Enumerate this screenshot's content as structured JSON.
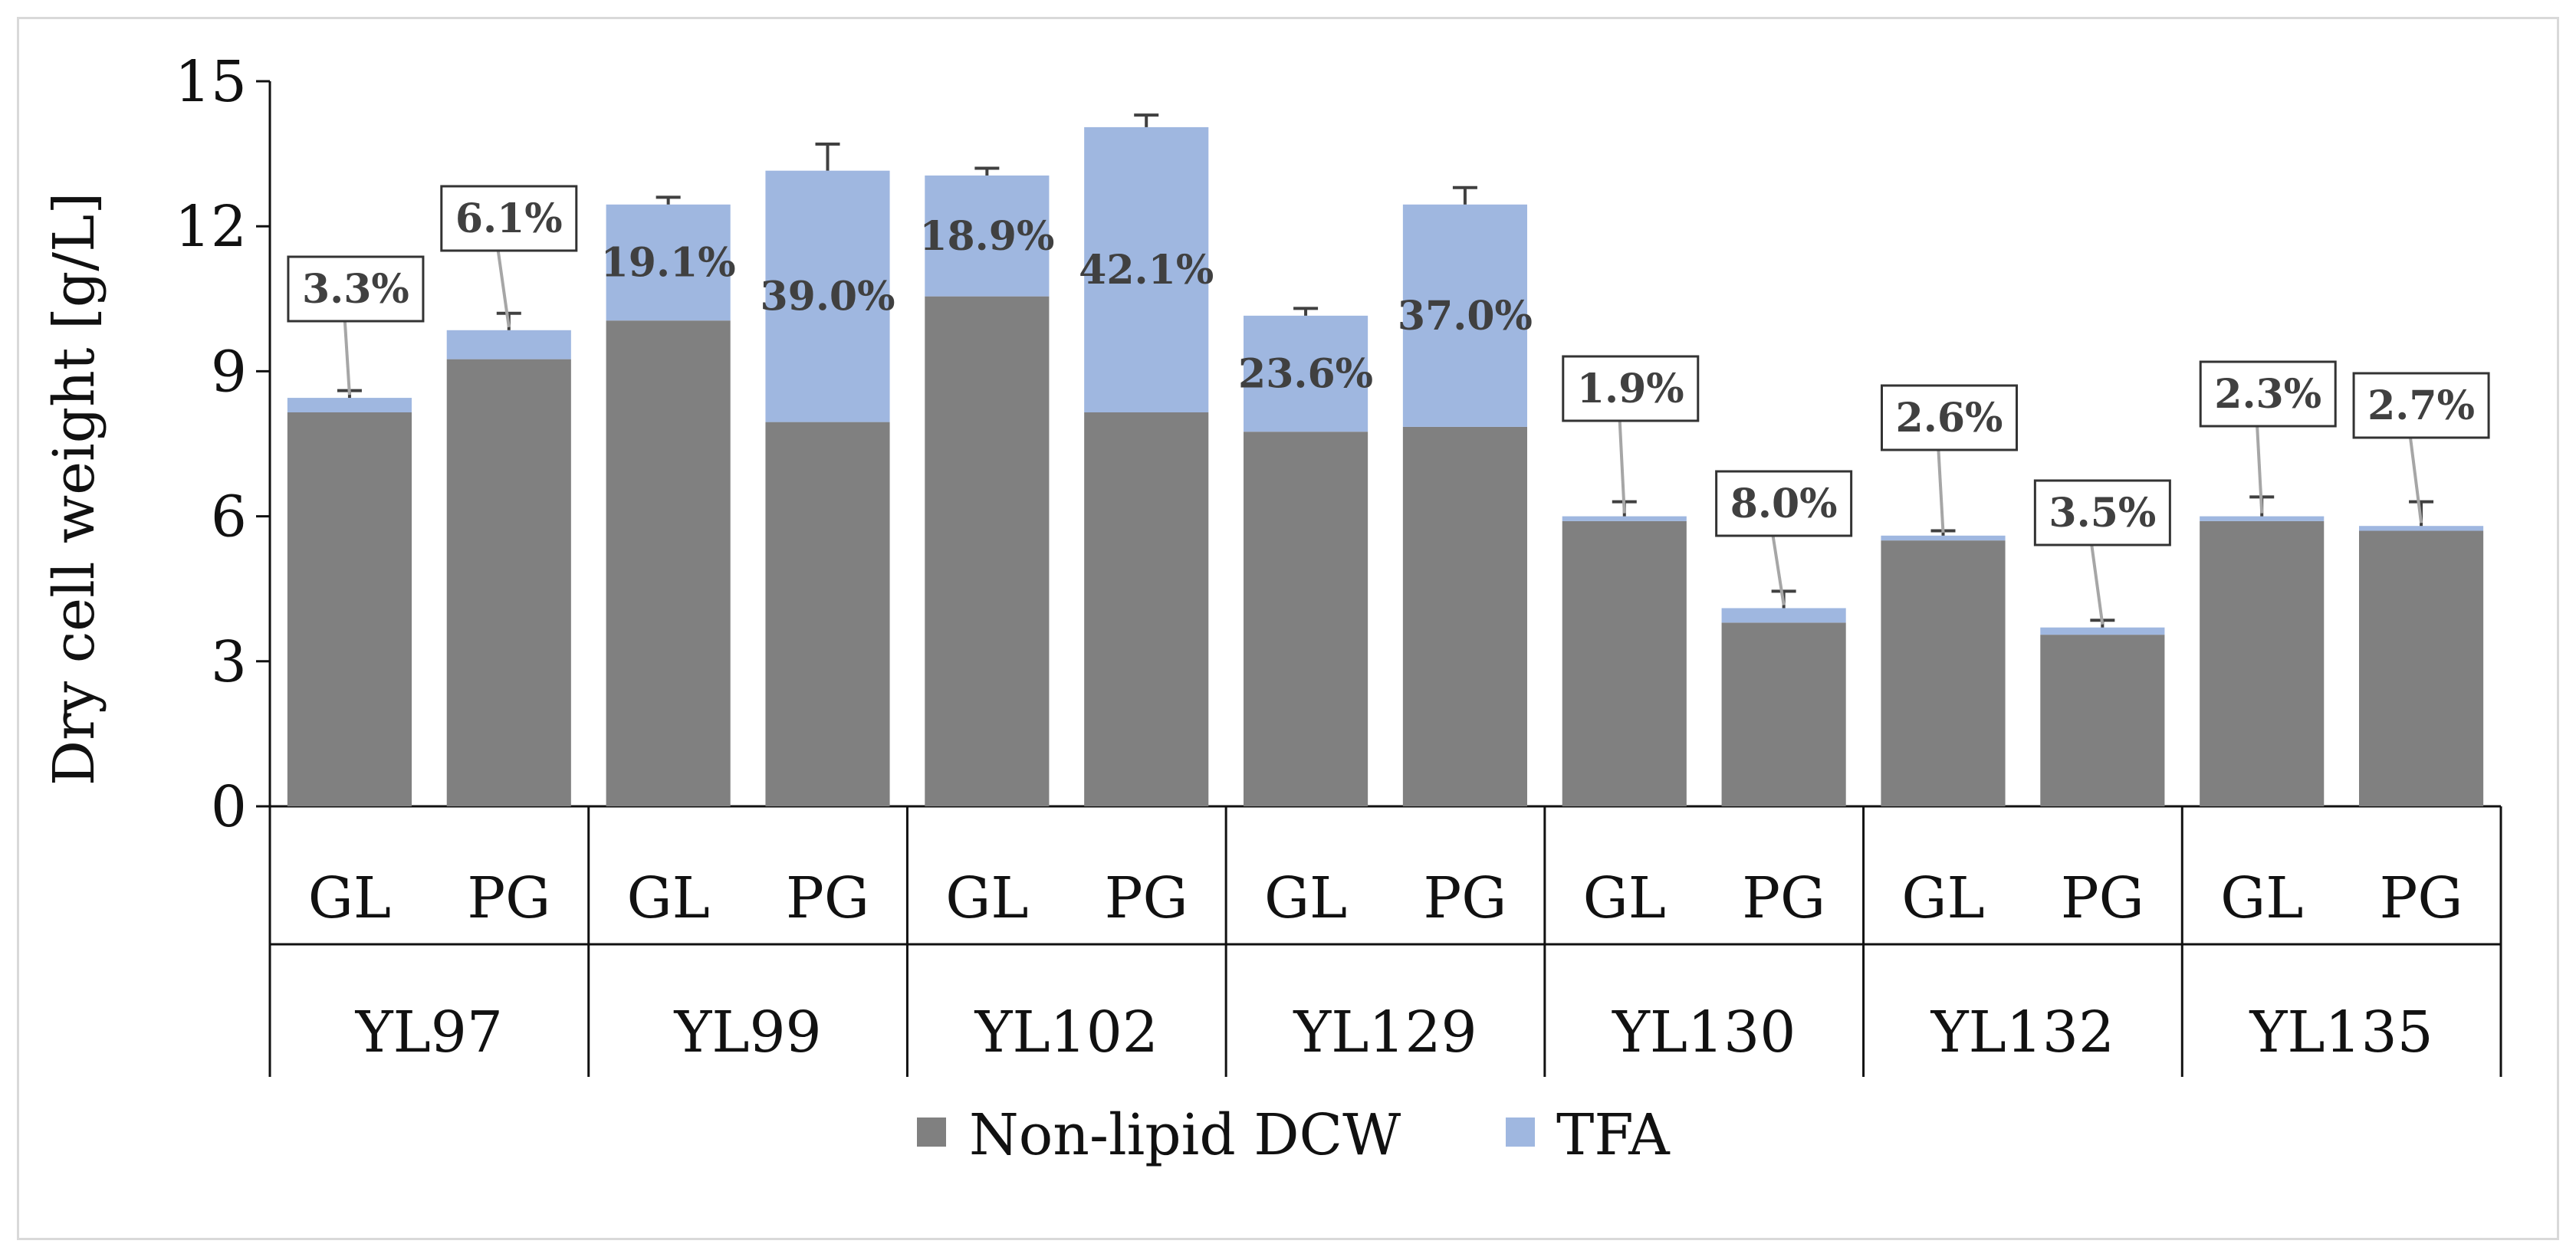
{
  "chart_data": {
    "type": "bar",
    "stacked": true,
    "ylabel": "Dry cell weight  [g/L]",
    "xlabel": "",
    "ylim": [
      0,
      15
    ],
    "yticks": [
      "0",
      "3",
      "6",
      "9",
      "12",
      "15"
    ],
    "ytick_values": [
      0,
      3,
      6,
      9,
      12,
      15
    ],
    "groups": [
      "YL97",
      "YL99",
      "YL102",
      "YL129",
      "YL130",
      "YL132",
      "YL135"
    ],
    "categories": [
      "GL",
      "PG",
      "GL",
      "PG",
      "GL",
      "PG",
      "GL",
      "PG",
      "GL",
      "PG",
      "GL",
      "PG",
      "GL",
      "PG"
    ],
    "series": [
      {
        "name": "Non-lipid DCW",
        "color": "#808080",
        "values": [
          8.15,
          9.25,
          10.05,
          7.95,
          10.55,
          8.15,
          7.75,
          7.85,
          5.9,
          3.8,
          5.5,
          3.55,
          5.9,
          5.7
        ]
      },
      {
        "name": "TFA",
        "color": "#9fb7e0",
        "values": [
          0.3,
          0.6,
          2.4,
          5.2,
          2.5,
          5.9,
          2.4,
          4.6,
          0.1,
          0.3,
          0.1,
          0.15,
          0.1,
          0.1
        ]
      }
    ],
    "error_tops": [
      8.6,
      10.2,
      12.6,
      13.7,
      13.2,
      14.3,
      10.3,
      12.8,
      6.3,
      4.45,
      5.7,
      3.85,
      6.4,
      6.3
    ],
    "tfa_percent_labels": [
      "3.3%",
      "6.1%",
      "19.1%",
      "39.0%",
      "18.9%",
      "42.1%",
      "23.6%",
      "37.0%",
      "1.9%",
      "8.0%",
      "2.6%",
      "3.5%",
      "2.3%",
      "2.7%"
    ],
    "label_style": [
      "callout",
      "callout",
      "inside",
      "inside",
      "inside",
      "inside",
      "inside",
      "inside",
      "callout",
      "callout",
      "callout",
      "callout",
      "callout",
      "callout"
    ],
    "legend": [
      "Non-lipid DCW",
      "TFA"
    ],
    "legend_position": "bottom",
    "grid": false
  }
}
